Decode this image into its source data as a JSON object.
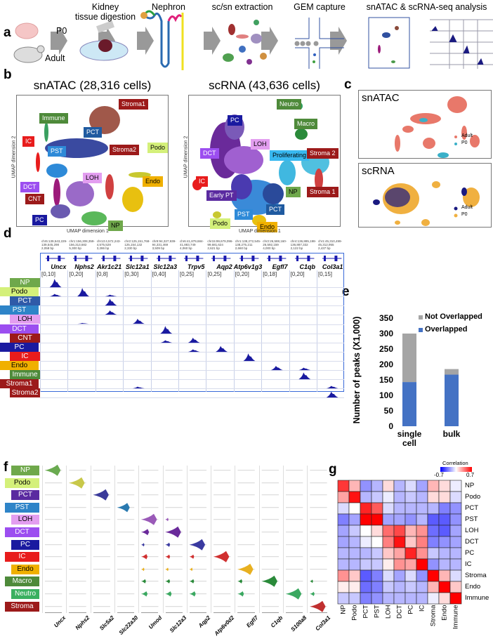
{
  "panel_labels": [
    "a",
    "b",
    "c",
    "d",
    "e",
    "f",
    "g"
  ],
  "panel_a": {
    "sample_labels": [
      "P0",
      "Adult"
    ],
    "steps": [
      "Kidney\ntissue digestion",
      "Nephron",
      "sc/sn extraction",
      "GEM capture",
      "snATAC & scRNA-seq analysis"
    ]
  },
  "panel_b": {
    "snatac": {
      "title": "snATAC (28,316 cells)",
      "xlabel": "UMAP dimension 1",
      "ylabel": "UMAP dimension 2",
      "clusters": [
        {
          "label": "Stroma1",
          "color": "#9c1a1a"
        },
        {
          "label": "Immune",
          "color": "#4e8a3a"
        },
        {
          "label": "PCT",
          "color": "#1f5aa0"
        },
        {
          "label": "IC",
          "color": "#e81c1c"
        },
        {
          "label": "PST",
          "color": "#2e8ad8"
        },
        {
          "label": "Stroma2",
          "color": "#9c1a1a"
        },
        {
          "label": "Podo",
          "color": "#d4f07a"
        },
        {
          "label": "LOH",
          "color": "#e39ef0"
        },
        {
          "label": "Endo",
          "color": "#f0b000"
        },
        {
          "label": "DCT",
          "color": "#9c4ef0"
        },
        {
          "label": "CNT",
          "color": "#9c1a1a"
        },
        {
          "label": "PC",
          "color": "#1a1aa0"
        },
        {
          "label": "NP",
          "color": "#6fa84b"
        }
      ]
    },
    "scrna": {
      "title": "scRNA (43,636 cells)",
      "xlabel": "UMAP dimension 1",
      "ylabel": "UMAP dimension 2",
      "clusters": [
        {
          "label": "Neutro",
          "color": "#4e8a3a"
        },
        {
          "label": "PC",
          "color": "#1a1aa0"
        },
        {
          "label": "Macro",
          "color": "#4e8a3a"
        },
        {
          "label": "LOH",
          "color": "#e39ef0"
        },
        {
          "label": "DCT",
          "color": "#9c4ef0"
        },
        {
          "label": "Proliferating",
          "color": "#38b8f0"
        },
        {
          "label": "Stroma 2",
          "color": "#9c1a1a"
        },
        {
          "label": "IC",
          "color": "#e81c1c"
        },
        {
          "label": "NP",
          "color": "#6fa84b"
        },
        {
          "label": "Early PT",
          "color": "#5a2aa0"
        },
        {
          "label": "Stroma 1",
          "color": "#9c1a1a"
        },
        {
          "label": "PCT",
          "color": "#1f5aa0"
        },
        {
          "label": "PST",
          "color": "#2e8ad8"
        },
        {
          "label": "Podo",
          "color": "#d4f07a"
        },
        {
          "label": "Endo",
          "color": "#f0b000"
        }
      ]
    }
  },
  "panel_c": {
    "snatac": {
      "title": "snATAC",
      "legend": [
        {
          "label": "Adult",
          "color": "#e8786a"
        },
        {
          "label": "P0",
          "color": "#3ab0c8"
        }
      ]
    },
    "scrna": {
      "title": "scRNA",
      "legend": [
        {
          "label": "Adult",
          "color": "#1a1a80"
        },
        {
          "label": "P0",
          "color": "#f0b040"
        }
      ]
    }
  },
  "panel_d": {
    "genes": [
      {
        "name": "Uncx",
        "coord": "chr5:139,543,229-\n139,545,298\n2,058 bp",
        "scale": "[0,10]"
      },
      {
        "name": "Nphs2",
        "coord": "chr1:156,308,359-\n156,313,682\n5,300 bp",
        "scale": "[0,20]"
      },
      {
        "name": "Akr1c21",
        "coord": "chr13:4,572,243-\n4,575,528\n3,286 bp",
        "scale": "[0,8]"
      },
      {
        "name": "Slc12a1",
        "coord": "chr2:125,151,768-\n125,154,132\n2,330 bp",
        "scale": "[0,30]"
      },
      {
        "name": "Slc12a3",
        "coord": "chr8:94,327,939-\n94,331,469\n3,509 bp",
        "scale": "[0,40]"
      },
      {
        "name": "Trpv5",
        "coord": "chr6:41,879,684-\n41,883,749\n4,060 bp",
        "scale": "[0,25]"
      },
      {
        "name": "Aqp2",
        "coord": "chr15:99,679,096-\n99,681,624\n2,621 bp",
        "scale": "[0,25]"
      },
      {
        "name": "Atp6v1g3",
        "coord": "chr1:138,272,545-\n138,275,211\n2,660 bp",
        "scale": "[0,20]"
      },
      {
        "name": "Egfl7",
        "coord": "chr2:26,588,160-\n26,592,159\n4,000 bp",
        "scale": "[0,18]"
      },
      {
        "name": "C1qb",
        "coord": "chr4:136,885,198-\n136,887,332\n2,122 bp",
        "scale": "[0,20]"
      },
      {
        "name": "Col3a1",
        "coord": "chr1:45,310,499-\n45,312,955\n2,437 bp",
        "scale": "[0,15]"
      }
    ],
    "rows": [
      {
        "label": "NP",
        "color": "#6fa84b"
      },
      {
        "label": "Podo",
        "color": "#d4f07a"
      },
      {
        "label": "PCT",
        "color": "#2f5aa8"
      },
      {
        "label": "PST",
        "color": "#2e84c8"
      },
      {
        "label": "LOH",
        "color": "#e39ef0"
      },
      {
        "label": "DCT",
        "color": "#9c4ef0"
      },
      {
        "label": "CNT",
        "color": "#9c1a1a"
      },
      {
        "label": "PC",
        "color": "#1a1aa0"
      },
      {
        "label": "IC",
        "color": "#e81c1c"
      },
      {
        "label": "Endo",
        "color": "#f0b000"
      },
      {
        "label": "Immune",
        "color": "#4e8a3a"
      },
      {
        "label": "Stroma1",
        "color": "#9c1a1a"
      },
      {
        "label": "Stroma2",
        "color": "#9c1a1a"
      }
    ],
    "peaks": [
      [
        1,
        0,
        0,
        0,
        0,
        0,
        0,
        0,
        0,
        0,
        0
      ],
      [
        0.3,
        1,
        0.2,
        0,
        0,
        0,
        0,
        0,
        0,
        0,
        0
      ],
      [
        0,
        0,
        0.8,
        0,
        0,
        0,
        0,
        0,
        0,
        0,
        0
      ],
      [
        0,
        0,
        0.5,
        0,
        0,
        0,
        0,
        0,
        0,
        0,
        0
      ],
      [
        0,
        0.1,
        0,
        0.6,
        0,
        0,
        0,
        0,
        0,
        0,
        0
      ],
      [
        0,
        0,
        0,
        0,
        0.9,
        0,
        0,
        0,
        0,
        0,
        0
      ],
      [
        0,
        0,
        0,
        0,
        0.3,
        0.6,
        0,
        0,
        0,
        0,
        0
      ],
      [
        0,
        0,
        0,
        0,
        0,
        0.3,
        0.7,
        0,
        0,
        0,
        0
      ],
      [
        0,
        0,
        0,
        0,
        0,
        0,
        0,
        0.9,
        0,
        0,
        0
      ],
      [
        0,
        0,
        0,
        0,
        0,
        0,
        0,
        0,
        0.5,
        0.3,
        0
      ],
      [
        0,
        0,
        0,
        0,
        0,
        0,
        0,
        0,
        0,
        0.8,
        0
      ],
      [
        0,
        0,
        0,
        0.2,
        0,
        0,
        0,
        0,
        0,
        0,
        0.3
      ],
      [
        0,
        0,
        0,
        0,
        0,
        0,
        0,
        0,
        0,
        0,
        0.7
      ]
    ]
  },
  "panel_f": {
    "genes": [
      "Uncx",
      "Nphs2",
      "Slc5a2",
      "Slc22a30",
      "Umod",
      "Slc12a3",
      "Aqp2",
      "Atp6v0d2",
      "Egfl7",
      "C1qb",
      "S100a8",
      "Col3a1"
    ],
    "rows": [
      {
        "label": "NP",
        "color": "#6fa84b",
        "violin": "#6aaa50"
      },
      {
        "label": "Podo",
        "color": "#d4f07a",
        "violin": "#c8c84a"
      },
      {
        "label": "PCT",
        "color": "#5a2aa0",
        "violin": "#3a3a9a"
      },
      {
        "label": "PST",
        "color": "#2e84c8",
        "violin": "#2a7ab0"
      },
      {
        "label": "LOH",
        "color": "#e39ef0",
        "violin": "#9a5ab8"
      },
      {
        "label": "DCT",
        "color": "#9c4ef0",
        "violin": "#6a2a9a"
      },
      {
        "label": "PC",
        "color": "#1a1aa0",
        "violin": "#3a3aa0"
      },
      {
        "label": "IC",
        "color": "#e81c1c",
        "violin": "#d03030"
      },
      {
        "label": "Endo",
        "color": "#f0b000",
        "violin": "#e8b020"
      },
      {
        "label": "Macro",
        "color": "#4e8a3a",
        "violin": "#2a8a3a"
      },
      {
        "label": "Neutro",
        "color": "#3ab060",
        "violin": "#3aa860"
      },
      {
        "label": "Stroma",
        "color": "#9c1a1a",
        "violin": "#c03030"
      }
    ],
    "expression": [
      [
        1,
        0,
        0,
        0,
        0,
        0,
        0,
        0,
        0,
        0,
        0,
        0
      ],
      [
        0,
        1,
        0,
        0,
        0,
        0,
        0,
        0,
        0,
        0,
        0,
        0
      ],
      [
        0,
        0,
        1,
        0,
        0,
        0,
        0,
        0,
        0,
        0,
        0,
        0
      ],
      [
        0,
        0,
        0,
        0.8,
        0,
        0,
        0,
        0,
        0,
        0,
        0,
        0
      ],
      [
        0,
        0,
        0,
        0,
        1,
        0.2,
        0,
        0,
        0,
        0,
        0,
        0
      ],
      [
        0,
        0,
        0,
        0,
        0.5,
        1,
        0,
        0,
        0,
        0,
        0,
        0
      ],
      [
        0,
        0,
        0,
        0,
        0.2,
        0.3,
        1,
        0,
        0,
        0,
        0,
        0
      ],
      [
        0,
        0,
        0,
        0,
        0.4,
        0.3,
        0.3,
        1,
        0,
        0,
        0,
        0
      ],
      [
        0,
        0,
        0,
        0,
        0.2,
        0.2,
        0.2,
        0,
        1,
        0,
        0,
        0
      ],
      [
        0,
        0,
        0,
        0,
        0.3,
        0.3,
        0.3,
        0,
        0.3,
        1,
        0,
        0.2
      ],
      [
        0,
        0,
        0,
        0,
        0.4,
        0.4,
        0.4,
        0,
        0.4,
        0,
        1,
        0.3
      ],
      [
        0,
        0,
        0,
        0,
        0,
        0,
        0,
        0,
        0,
        0,
        0,
        1
      ]
    ]
  },
  "chart_data": [
    {
      "type": "bar",
      "panel": "e",
      "stacked": true,
      "categories": [
        "single\ncell",
        "bulk"
      ],
      "series": [
        {
          "name": "Overlapped",
          "color": "#4472c4",
          "values": [
            143,
            167
          ]
        },
        {
          "name": "Not Overlapped",
          "color": "#a5a5a5",
          "values": [
            157,
            18
          ]
        }
      ],
      "ylabel": "Number of peaks (X1,000)",
      "ylim": [
        0,
        350
      ],
      "yticks": [
        "0",
        "50",
        "100",
        "150",
        "200",
        "250",
        "300",
        "350"
      ],
      "legend": "top-right"
    },
    {
      "type": "heatmap",
      "panel": "g",
      "labels": [
        "NP",
        "Podo",
        "PCT",
        "PST",
        "LOH",
        "DCT",
        "PC",
        "IC",
        "Stroma",
        "Endo",
        "Immune"
      ],
      "colorbar": {
        "title": "Correlation",
        "min_label": "-0.7",
        "max_label": "0.7",
        "min": -0.7,
        "max": 0.7
      },
      "values": [
        [
          0.55,
          0.2,
          -0.3,
          -0.2,
          0.1,
          -0.2,
          -0.1,
          -0.25,
          0.2,
          0.1,
          -0.05
        ],
        [
          0.25,
          0.65,
          -0.2,
          -0.15,
          -0.05,
          -0.2,
          -0.15,
          -0.2,
          0.1,
          0.1,
          -0.1
        ],
        [
          -0.1,
          0,
          0.6,
          0.45,
          -0.1,
          -0.2,
          -0.2,
          -0.2,
          -0.2,
          -0.35,
          -0.3
        ],
        [
          -0.35,
          -0.25,
          0.7,
          0.7,
          -0.25,
          -0.25,
          -0.3,
          -0.2,
          -0.45,
          -0.45,
          -0.3
        ],
        [
          -0.25,
          -0.15,
          0,
          0.1,
          0.4,
          0.5,
          0.2,
          0.3,
          -0.4,
          -0.45,
          -0.25
        ],
        [
          -0.25,
          -0.2,
          -0.05,
          0,
          0.35,
          0.65,
          0.15,
          0.35,
          -0.35,
          -0.3,
          -0.25
        ],
        [
          -0.2,
          -0.2,
          -0.2,
          -0.15,
          0.15,
          0.25,
          0.6,
          0.3,
          -0.15,
          -0.2,
          -0.2
        ],
        [
          -0.2,
          -0.2,
          -0.15,
          -0.15,
          0.05,
          0.3,
          0.25,
          0.7,
          -0.3,
          -0.2,
          -0.2
        ],
        [
          0.3,
          0.15,
          -0.45,
          -0.35,
          -0.1,
          -0.25,
          -0.1,
          -0.3,
          0.7,
          0.2,
          -0.1
        ],
        [
          0.05,
          0.05,
          -0.4,
          -0.35,
          -0.15,
          -0.2,
          -0.15,
          -0.2,
          0.2,
          0.7,
          0.15
        ],
        [
          -0.15,
          -0.15,
          -0.35,
          -0.3,
          -0.2,
          -0.2,
          -0.2,
          -0.2,
          -0.05,
          0.1,
          0.7
        ]
      ]
    }
  ]
}
